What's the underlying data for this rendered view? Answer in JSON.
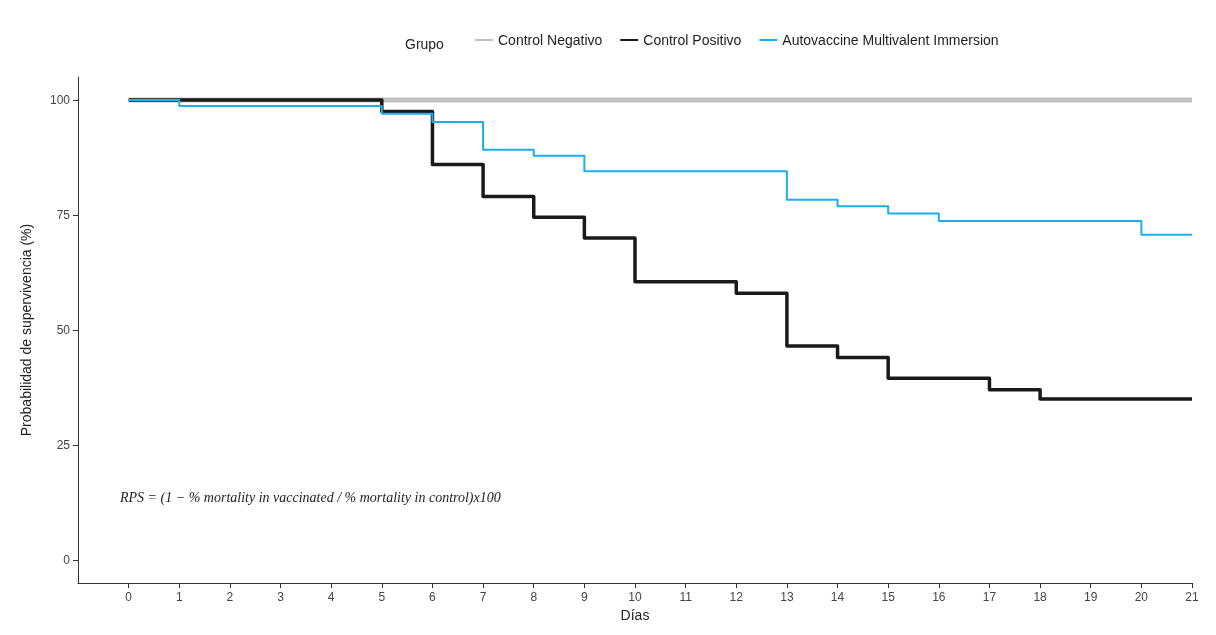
{
  "chart_data": {
    "type": "step",
    "xlabel": "Días",
    "ylabel": "Probabilidad de supervivencia (%)",
    "legend_title": "Grupo",
    "legend": "top",
    "xlim": [
      -1,
      21
    ],
    "xticks": [
      0,
      1,
      2,
      3,
      4,
      5,
      6,
      7,
      8,
      9,
      10,
      11,
      12,
      13,
      14,
      15,
      16,
      17,
      18,
      19,
      20,
      21
    ],
    "ylim": [
      -5,
      105
    ],
    "yticks": [
      0,
      25,
      50,
      75,
      100
    ],
    "grid": false,
    "marker": "none",
    "line_style": "solid",
    "annotations": [
      "RPS = (1 − % mortality in vaccinated / % mortality in control)x100"
    ],
    "series": [
      {
        "name": "Control Negativo",
        "color": "#c0c0c0",
        "x": [
          0,
          21
        ],
        "values": [
          100,
          100
        ]
      },
      {
        "name": "Control Positivo",
        "color": "#1a1a1a",
        "x": [
          0,
          5,
          6,
          7,
          8,
          9,
          10,
          12,
          13,
          14,
          15,
          17,
          18,
          21
        ],
        "values": [
          100,
          97.5,
          86,
          79,
          74.5,
          70,
          60.5,
          58,
          46.5,
          44,
          39.5,
          37,
          35,
          35
        ]
      },
      {
        "name": "Autovaccine Multivalent Immersion",
        "color": "#1ab0ec",
        "x": [
          0,
          1,
          5,
          6,
          7,
          8,
          9,
          13,
          14,
          15,
          16,
          20,
          21
        ],
        "values": [
          100,
          98.7,
          97,
          95.2,
          89.2,
          87.9,
          84.5,
          78.3,
          76.9,
          75.3,
          73.7,
          70.7,
          70.7
        ]
      }
    ]
  }
}
